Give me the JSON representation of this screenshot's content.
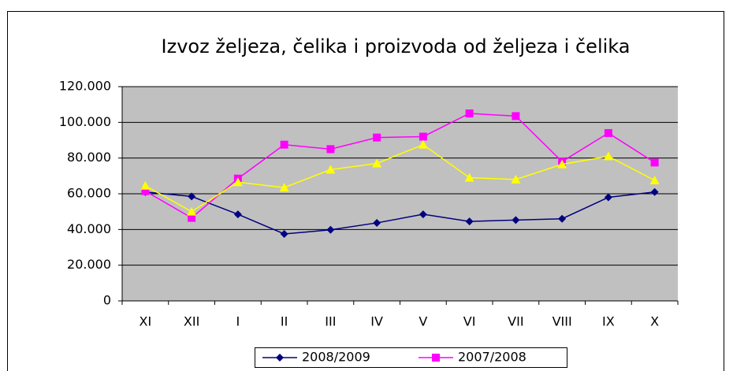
{
  "chart_data": {
    "type": "line",
    "title": "Izvoz željeza, čelika i proizvoda od željeza i čelika",
    "categories": [
      "XI",
      "XII",
      "I",
      "II",
      "III",
      "IV",
      "V",
      "VI",
      "VII",
      "VIII",
      "IX",
      "X"
    ],
    "series": [
      {
        "name": "2008/2009",
        "color": "#000080",
        "marker": "diamond",
        "values": [
          61000,
          58500,
          48500,
          37500,
          39800,
          43700,
          48500,
          44500,
          45300,
          46000,
          58000,
          61000
        ]
      },
      {
        "name": "2007/2008",
        "color": "#ff00ff",
        "marker": "square",
        "values": [
          61500,
          46500,
          68500,
          87500,
          85000,
          91500,
          92000,
          105000,
          103500,
          78000,
          94000,
          77500
        ]
      },
      {
        "color": "#ffff00",
        "marker": "triangle",
        "values": [
          64500,
          50000,
          66500,
          63500,
          73500,
          77000,
          87500,
          69000,
          68000,
          76500,
          81000,
          67500
        ]
      }
    ],
    "ylim": [
      0,
      120000
    ],
    "yticks": [
      0,
      {
        "value": 20000,
        "label": "20.000"
      },
      {
        "value": 40000,
        "label": "40.000"
      },
      {
        "value": 60000,
        "label": "60.000"
      },
      {
        "value": 80000,
        "label": "80.000"
      },
      {
        "value": 100000,
        "label": "100.000"
      },
      {
        "value": 120000,
        "label": "120.000"
      }
    ],
    "grid": true,
    "plot_background": "#c0c0c0",
    "legend": "bottom"
  }
}
